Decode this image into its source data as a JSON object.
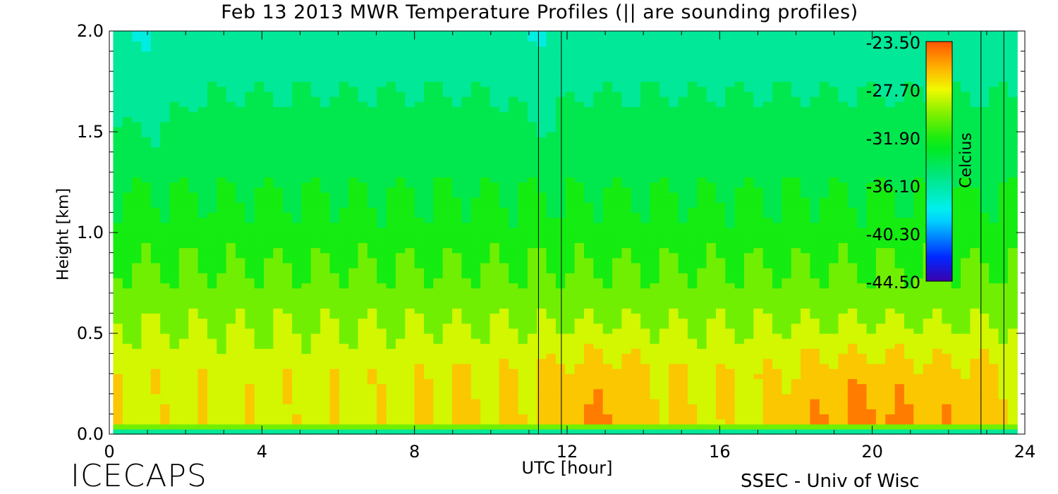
{
  "chart_data": {
    "type": "heatmap",
    "title": "Feb 13 2013 MWR Temperature Profiles (|| are sounding profiles)",
    "xlabel": "UTC [hour]",
    "ylabel": "Height [km]",
    "xlim": [
      0,
      24
    ],
    "ylim": [
      0,
      2.0
    ],
    "x_ticks": [
      "0",
      "4",
      "8",
      "12",
      "16",
      "20",
      "24"
    ],
    "y_ticks": [
      "0.0",
      "0.5",
      "1.0",
      "1.5",
      "2.0"
    ],
    "colorbar": {
      "label": "Celcius",
      "ticks": [
        "-23.50",
        "-27.70",
        "-31.90",
        "-36.10",
        "-40.30",
        "-44.50"
      ],
      "range": [
        -44.5,
        -23.5
      ]
    },
    "sounding_times_utc": [
      11.25,
      11.85,
      22.85,
      23.45
    ],
    "data_time_range_utc": [
      0.1,
      23.8
    ],
    "grid": false
  },
  "footer": {
    "left": "ICECAPS",
    "right": "SSEC - Univ of Wisc"
  }
}
